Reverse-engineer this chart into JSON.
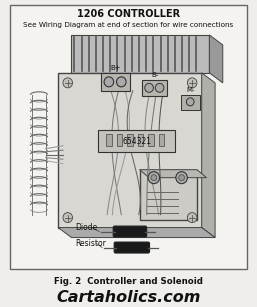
{
  "title": "1206 CONTROLLER",
  "subtitle": "See Wiring Diagram at end of section for wire connections",
  "caption": "Fig. 2  Controller and Solenoid",
  "watermark": "Cartaholics.com",
  "bg_color": "#f0eeea",
  "border_color": "#888888",
  "title_fontsize": 7.0,
  "subtitle_fontsize": 5.2,
  "caption_fontsize": 6.2,
  "watermark_fontsize": 11.5,
  "label_b_plus": "B+",
  "label_b_minus": "B-",
  "label_m_minus": "M-",
  "label_654321": "654321",
  "label_diode": "Diode",
  "label_resistor": "Resistor"
}
